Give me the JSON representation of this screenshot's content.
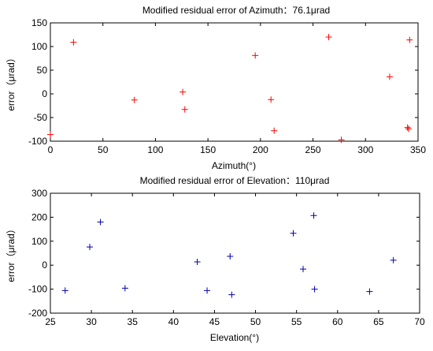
{
  "chart_data": [
    {
      "type": "scatter",
      "title": "Modified residual error of Azimuth：76.1μrad",
      "xlabel": "Azimuth(°)",
      "ylabel": "error（μrad）",
      "xlim": [
        0,
        350
      ],
      "ylim": [
        -100,
        150
      ],
      "xticks": [
        0,
        50,
        100,
        150,
        200,
        250,
        300,
        350
      ],
      "yticks": [
        -100,
        -50,
        0,
        50,
        100,
        150
      ],
      "marker": "+",
      "color": "#ff0000",
      "grid": false,
      "series": [
        {
          "x": [
            0,
            22,
            80,
            126,
            128,
            195,
            210,
            213,
            265,
            277,
            323,
            340,
            341,
            342
          ],
          "y": [
            -86,
            109,
            -13,
            4,
            -33,
            81,
            -12,
            -78,
            120,
            -97,
            36,
            -71,
            -74,
            114
          ]
        }
      ]
    },
    {
      "type": "scatter",
      "title": "Modified residual error of Elevation：110μrad",
      "xlabel": "Elevation(°)",
      "ylabel": "error（μrad）",
      "xlim": [
        25,
        70
      ],
      "ylim": [
        -200,
        300
      ],
      "xticks": [
        25,
        30,
        35,
        40,
        45,
        50,
        55,
        60,
        65,
        70
      ],
      "yticks": [
        -200,
        -100,
        0,
        100,
        200,
        300
      ],
      "marker": "+",
      "color": "#0000aa",
      "grid": false,
      "series": [
        {
          "x": [
            26.8,
            29.8,
            31.1,
            34.1,
            42.9,
            44.1,
            46.9,
            47.1,
            54.6,
            55.8,
            57.1,
            57.2,
            63.9,
            66.8
          ],
          "y": [
            -106,
            76,
            180,
            -96,
            14,
            -106,
            37,
            -123,
            133,
            -16,
            207,
            -100,
            -110,
            21
          ]
        }
      ]
    }
  ]
}
